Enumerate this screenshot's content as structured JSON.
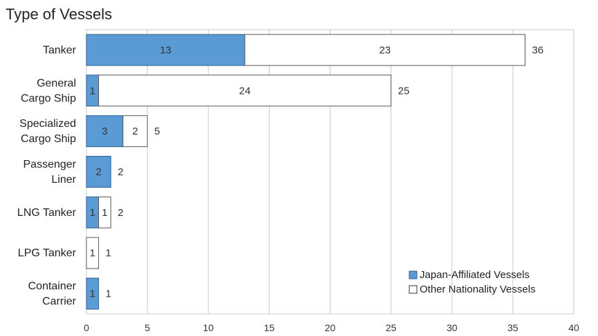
{
  "chart_data": {
    "type": "bar",
    "orientation": "horizontal",
    "stacked": true,
    "title": "Type of Vessels",
    "categories": [
      [
        "Tanker"
      ],
      [
        "General",
        "Cargo Ship"
      ],
      [
        "Specialized",
        "Cargo Ship"
      ],
      [
        "Passenger",
        "Liner"
      ],
      [
        "LNG Tanker"
      ],
      [
        "LPG Tanker"
      ],
      [
        "Container",
        "Carrier"
      ]
    ],
    "series": [
      {
        "name": "Japan-Affiliated Vessels",
        "values": [
          13,
          1,
          3,
          2,
          1,
          0,
          1
        ],
        "color": "#5b9bd5"
      },
      {
        "name": "Other Nationality Vessels",
        "values": [
          23,
          24,
          2,
          0,
          1,
          1,
          0
        ],
        "color": "#ffffff"
      }
    ],
    "totals": [
      36,
      25,
      5,
      2,
      2,
      1,
      1
    ],
    "xlim": [
      0,
      40
    ],
    "xticks": [
      0,
      5,
      10,
      15,
      20,
      25,
      30,
      35,
      40
    ],
    "grid": true,
    "legend_position": "bottom-right",
    "xlabel": "",
    "ylabel": ""
  }
}
